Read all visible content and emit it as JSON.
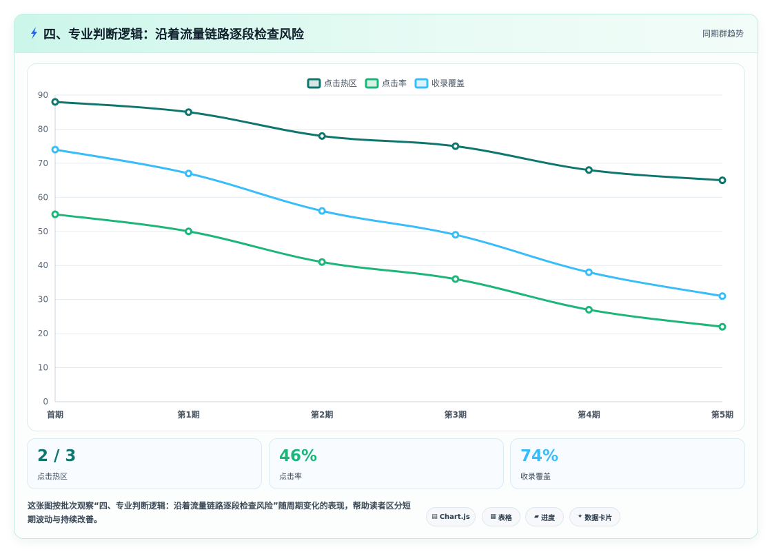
{
  "header": {
    "icon": "lightning-icon",
    "title": "四、专业判断逻辑：沿着流量链路逐段检查风险",
    "link": "同期群趋势"
  },
  "chart_data": {
    "type": "line",
    "categories": [
      "首期",
      "第1期",
      "第2期",
      "第3期",
      "第4期",
      "第5期"
    ],
    "series": [
      {
        "name": "点击热区",
        "color": "#0f766e",
        "values": [
          88,
          85,
          78,
          75,
          68,
          65
        ]
      },
      {
        "name": "点击率",
        "color": "#1db57a",
        "values": [
          55,
          50,
          41,
          36,
          27,
          22
        ]
      },
      {
        "name": "收录覆盖",
        "color": "#38bdf8",
        "values": [
          74,
          67,
          56,
          49,
          38,
          31
        ]
      }
    ],
    "ylim": [
      0,
      90
    ],
    "yticks": [
      0,
      10,
      20,
      30,
      40,
      50,
      60,
      70,
      80,
      90
    ],
    "grid": true,
    "legend": "top-center",
    "smooth": true
  },
  "stats": [
    {
      "value": "2 / 3",
      "label": "点击热区",
      "color": "#0f766e"
    },
    {
      "value": "46%",
      "label": "点击率",
      "color": "#1db57a"
    },
    {
      "value": "74%",
      "label": "收录覆盖",
      "color": "#38bdf8"
    }
  ],
  "footer": {
    "description": "这张图按批次观察“四、专业判断逻辑：沿着流量链路逐段检查风险”随周期变化的表现，帮助读者区分短期波动与持续改善。",
    "chips": [
      {
        "icon": "chart-icon",
        "glyph": "▤",
        "label": "Chart.js"
      },
      {
        "icon": "table-icon",
        "glyph": "▦",
        "label": "表格"
      },
      {
        "icon": "progress-icon",
        "glyph": "▰",
        "label": "进度"
      },
      {
        "icon": "sparkle-icon",
        "glyph": "✦",
        "label": "数据卡片"
      }
    ]
  }
}
